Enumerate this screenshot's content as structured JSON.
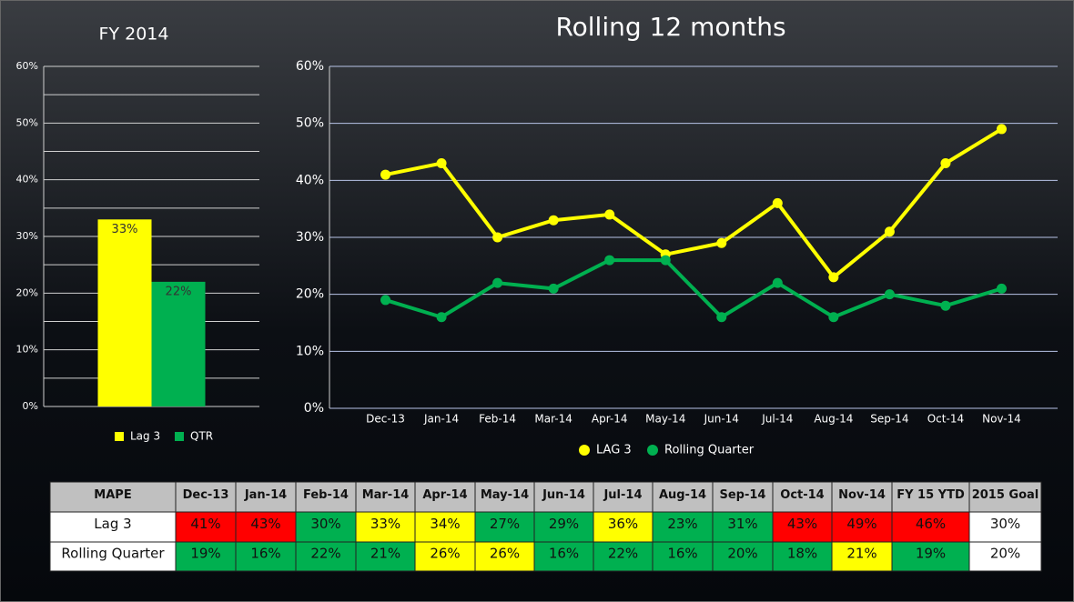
{
  "chart_data": [
    {
      "type": "bar",
      "title": "FY 2014",
      "categories": [
        null
      ],
      "series": [
        {
          "name": "Lag 3",
          "color": "#ffff00",
          "values": [
            33
          ],
          "value_labels": [
            "33%"
          ]
        },
        {
          "name": "QTR",
          "color": "#00b050",
          "values": [
            22
          ],
          "value_labels": [
            "22%"
          ]
        }
      ],
      "ylim": [
        0,
        60
      ],
      "yticks": [
        {
          "value": 0,
          "label": "0%"
        },
        {
          "value": 10,
          "label": "10%"
        },
        {
          "value": 20,
          "label": "20%"
        },
        {
          "value": 30,
          "label": "30%"
        },
        {
          "value": 40,
          "label": "40%"
        },
        {
          "value": 50,
          "label": "50%"
        },
        {
          "value": 60,
          "label": "60%"
        }
      ],
      "minor_yticks": [
        5,
        15,
        25,
        35,
        45,
        55
      ],
      "grid": true,
      "legend": "bottom"
    },
    {
      "type": "line",
      "title": "Rolling 12 months",
      "categories": [
        "Dec-13",
        "Jan-14",
        "Feb-14",
        "Mar-14",
        "Apr-14",
        "May-14",
        "Jun-14",
        "Jul-14",
        "Aug-14",
        "Sep-14",
        "Oct-14",
        "Nov-14"
      ],
      "series": [
        {
          "name": "LAG 3",
          "color": "#ffff00",
          "values": [
            41,
            43,
            30,
            33,
            34,
            27,
            29,
            36,
            23,
            31,
            43,
            49
          ]
        },
        {
          "name": "Rolling Quarter",
          "color": "#00b050",
          "values": [
            19,
            16,
            22,
            21,
            26,
            26,
            16,
            22,
            16,
            20,
            18,
            21
          ]
        }
      ],
      "ylim": [
        0,
        60
      ],
      "yticks": [
        {
          "value": 0,
          "label": "0%"
        },
        {
          "value": 10,
          "label": "10%"
        },
        {
          "value": 20,
          "label": "20%"
        },
        {
          "value": 30,
          "label": "30%"
        },
        {
          "value": 40,
          "label": "40%"
        },
        {
          "value": 50,
          "label": "50%"
        },
        {
          "value": 60,
          "label": "60%"
        }
      ],
      "grid": true,
      "legend": "bottom"
    }
  ],
  "table": {
    "header": [
      "MAPE",
      "Dec-13",
      "Jan-14",
      "Feb-14",
      "Mar-14",
      "Apr-14",
      "May-14",
      "Jun-14",
      "Jul-14",
      "Aug-14",
      "Sep-14",
      "Oct-14",
      "Nov-14",
      "FY 15 YTD",
      "2015 Goal"
    ],
    "rows": [
      {
        "label": "Lag 3",
        "cells": [
          "41%",
          "43%",
          "30%",
          "33%",
          "34%",
          "27%",
          "29%",
          "36%",
          "23%",
          "31%",
          "43%",
          "49%",
          "46%",
          "30%"
        ],
        "colors": [
          "#ff0000",
          "#ff0000",
          "#00b050",
          "#ffff00",
          "#ffff00",
          "#00b050",
          "#00b050",
          "#ffff00",
          "#00b050",
          "#00b050",
          "#ff0000",
          "#ff0000",
          "#ff0000",
          "#ffffff"
        ]
      },
      {
        "label": "Rolling Quarter",
        "cells": [
          "19%",
          "16%",
          "22%",
          "21%",
          "26%",
          "26%",
          "16%",
          "22%",
          "16%",
          "20%",
          "18%",
          "21%",
          "19%",
          "20%"
        ],
        "colors": [
          "#00b050",
          "#00b050",
          "#00b050",
          "#00b050",
          "#ffff00",
          "#ffff00",
          "#00b050",
          "#00b050",
          "#00b050",
          "#00b050",
          "#00b050",
          "#ffff00",
          "#00b050",
          "#ffffff"
        ]
      }
    ]
  }
}
